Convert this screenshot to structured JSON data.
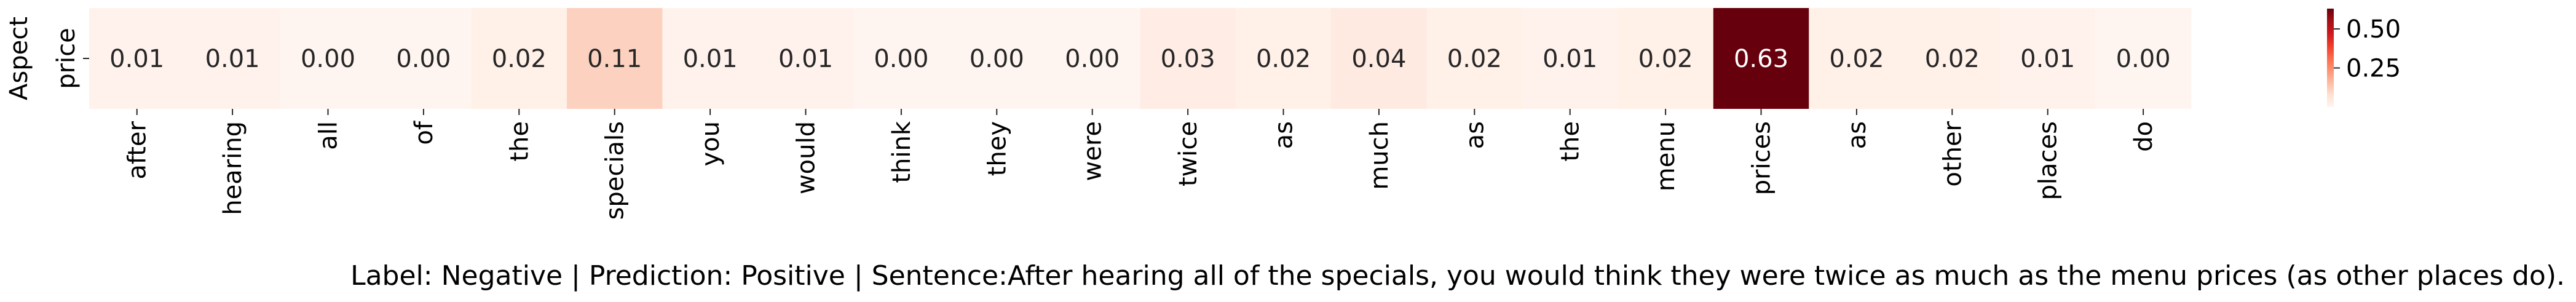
{
  "chart_data": {
    "type": "heatmap",
    "ylabel": "Aspect",
    "rows": [
      "price"
    ],
    "columns": [
      "after",
      "hearing",
      "all",
      "of",
      "the",
      "specials",
      "you",
      "would",
      "think",
      "they",
      "were",
      "twice",
      "as",
      "much",
      "as",
      "the",
      "menu",
      "prices",
      "as",
      "other",
      "places",
      "do"
    ],
    "values": [
      [
        0.01,
        0.01,
        0.0,
        0.0,
        0.02,
        0.11,
        0.01,
        0.01,
        0.0,
        0.0,
        0.0,
        0.03,
        0.02,
        0.04,
        0.02,
        0.01,
        0.02,
        0.63,
        0.02,
        0.02,
        0.01,
        0.0
      ]
    ],
    "value_labels": [
      [
        "0.01",
        "0.01",
        "0.00",
        "0.00",
        "0.02",
        "0.11",
        "0.01",
        "0.01",
        "0.00",
        "0.00",
        "0.00",
        "0.03",
        "0.02",
        "0.04",
        "0.02",
        "0.01",
        "0.02",
        "0.63",
        "0.02",
        "0.02",
        "0.01",
        "0.00"
      ]
    ],
    "colormap": "Reds",
    "vmin": 0.0,
    "vmax": 0.63,
    "colorbar": {
      "ticks": [
        0.25,
        0.5
      ],
      "tick_labels": [
        "0.25",
        "0.50"
      ],
      "placement": "right"
    },
    "caption": "Label: Negative | Prediction: Positive | Sentence:After hearing all of the specials, you would think they were twice as much as the menu prices (as other places do)."
  }
}
